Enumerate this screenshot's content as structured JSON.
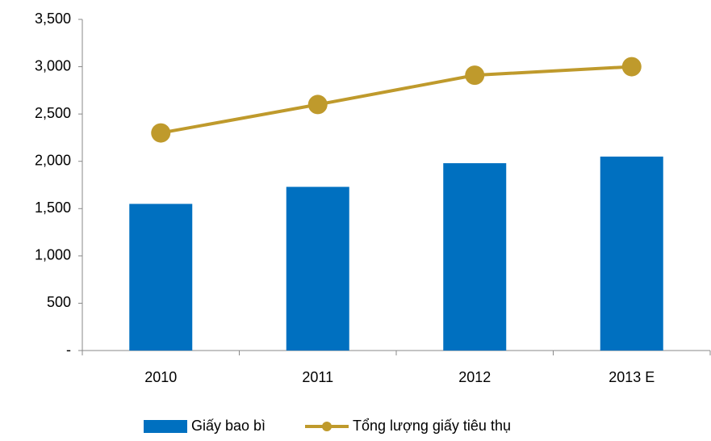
{
  "chart_data": {
    "type": "bar",
    "categories": [
      "2010",
      "2011",
      "2012",
      "2013 E"
    ],
    "series": [
      {
        "name": "Giấy bao bì",
        "type": "bar",
        "color": "#0070c0",
        "values": [
          1550,
          1730,
          1980,
          2050
        ]
      },
      {
        "name": "Tổng lượng giấy tiêu thụ",
        "type": "line",
        "color": "#bf9a2c",
        "values": [
          2300,
          2600,
          2910,
          3000
        ]
      }
    ],
    "ylim": [
      0,
      3500
    ],
    "yticks": [
      {
        "value": 0,
        "label": "-"
      },
      500,
      {
        "value": 1000,
        "label": "1,000"
      },
      {
        "value": 1500,
        "label": "1,500"
      },
      {
        "value": 2000,
        "label": "2,000"
      },
      {
        "value": 2500,
        "label": "2,500"
      },
      {
        "value": 3000,
        "label": "3,000"
      },
      {
        "value": 3500,
        "label": "3,500"
      }
    ],
    "grid": false,
    "legend": "bottom"
  }
}
